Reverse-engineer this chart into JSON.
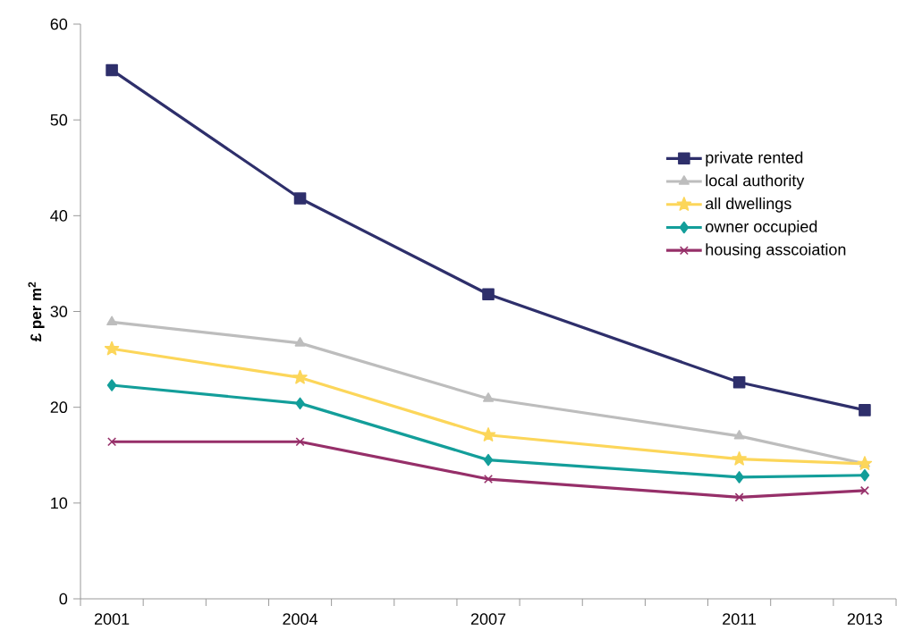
{
  "chart_data": {
    "type": "line",
    "ylabel": "**£ per m$^{2}$**",
    "x": [
      2001,
      2004,
      2007,
      2011,
      2013
    ],
    "series": [
      {
        "name": "private rented",
        "color": "#2e2f6b",
        "marker": "square",
        "values": [
          55.2,
          41.8,
          31.8,
          22.6,
          19.7
        ]
      },
      {
        "name": "local authority",
        "color": "#bdbdbd",
        "marker": "triangle",
        "values": [
          28.9,
          26.7,
          20.9,
          17.0,
          14.1
        ]
      },
      {
        "name": "all dwellings",
        "color": "#fcd65a",
        "marker": "star",
        "values": [
          26.1,
          23.1,
          17.1,
          14.6,
          14.1
        ]
      },
      {
        "name": "owner occupied",
        "color": "#139e9a",
        "marker": "diamond",
        "values": [
          22.3,
          20.4,
          14.5,
          12.7,
          12.9
        ]
      },
      {
        "name": "housing asscoiation",
        "color": "#962f69",
        "marker": "cross",
        "values": [
          16.4,
          16.4,
          12.5,
          10.6,
          11.3
        ]
      }
    ],
    "xlim": [
      2000.5,
      2013.5
    ],
    "xticks": [
      {
        "value": 2000.5,
        "label": null
      },
      2001,
      {
        "value": 2001.5,
        "label": null
      },
      {
        "value": 2002.5,
        "label": null
      },
      {
        "value": 2003.5,
        "label": null
      },
      2004,
      {
        "value": 2004.5,
        "label": null
      },
      {
        "value": 2005.5,
        "label": null
      },
      {
        "value": 2006.5,
        "label": null
      },
      2007,
      {
        "value": 2007.5,
        "label": null
      },
      {
        "value": 2008.5,
        "label": null
      },
      {
        "value": 2009.5,
        "label": null
      },
      {
        "value": 2010.5,
        "label": null
      },
      2011,
      {
        "value": 2011.5,
        "label": null
      },
      {
        "value": 2012.5,
        "label": null
      },
      2013,
      {
        "value": 2013.5,
        "label": null
      }
    ],
    "ylim": [
      0,
      60
    ],
    "yticks": [
      0,
      10,
      20,
      30,
      40,
      50,
      60
    ],
    "grid": false,
    "legend": "right",
    "line_style": "solid"
  }
}
